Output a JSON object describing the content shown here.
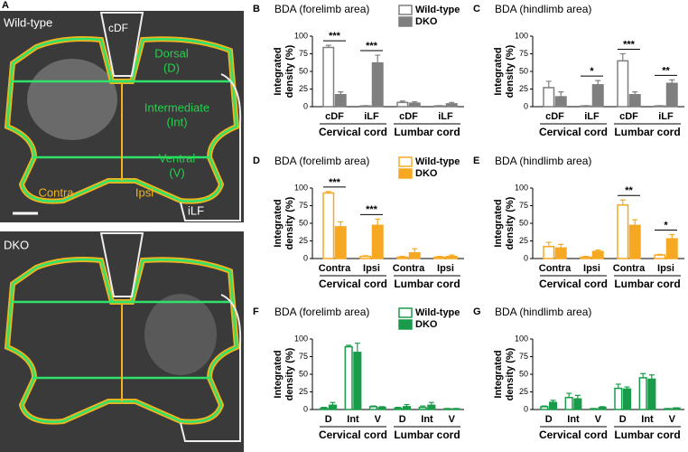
{
  "images": {
    "panel": "A",
    "top": {
      "label": "Wild-type",
      "regions": {
        "cdf": "cDF",
        "dorsal": "Dorsal",
        "dorsal_abbr": "(D)",
        "intermediate": "Intermediate",
        "intermediate_abbr": "(Int)",
        "ventral": "Ventral",
        "ventral_abbr": "(V)",
        "contra": "Contra",
        "ipsi": "Ipsi",
        "ilf": "iLF"
      }
    },
    "bottom": {
      "label": "DKO"
    }
  },
  "chart_data": [
    {
      "type": "bar",
      "panel": "B",
      "title": "BDA (forelimb area)",
      "ylabel": [
        "Integrated",
        "density (%)"
      ],
      "categories": [
        "cDF",
        "iLF",
        "cDF",
        "iLF"
      ],
      "group_labels": [
        "Cervical cord",
        "Lumbar cord"
      ],
      "ylim": [
        0,
        100
      ],
      "yticks": [
        0,
        25,
        50,
        75,
        100
      ],
      "legend": true,
      "significance": [
        "***",
        "***",
        null,
        null
      ],
      "series": [
        {
          "name": "Wild-type",
          "color": "#7f7f7f",
          "hollow": true,
          "values": [
            84,
            1,
            6,
            1
          ],
          "errors": [
            3,
            0.5,
            2,
            0.5
          ]
        },
        {
          "name": "DKO",
          "color": "#7f7f7f",
          "hollow": false,
          "values": [
            17,
            62,
            5,
            4
          ],
          "errors": [
            4,
            11,
            2,
            2
          ]
        }
      ]
    },
    {
      "type": "bar",
      "panel": "C",
      "title": "BDA (hindlimb area)",
      "ylabel": [
        "Integrated",
        "density (%)"
      ],
      "categories": [
        "cDF",
        "iLF",
        "cDF",
        "iLF"
      ],
      "group_labels": [
        "Cervical cord",
        "Lumbar cord"
      ],
      "ylim": [
        0,
        100
      ],
      "yticks": [
        0,
        25,
        50,
        75,
        100
      ],
      "legend": false,
      "significance": [
        null,
        "*",
        "***",
        "**"
      ],
      "series": [
        {
          "name": "Wild-type",
          "color": "#7f7f7f",
          "hollow": true,
          "values": [
            27,
            1,
            65,
            1
          ],
          "errors": [
            9,
            0.5,
            10,
            0.5
          ]
        },
        {
          "name": "DKO",
          "color": "#7f7f7f",
          "hollow": false,
          "values": [
            14,
            31,
            17,
            33
          ],
          "errors": [
            7,
            6,
            4,
            5
          ]
        }
      ]
    },
    {
      "type": "bar",
      "panel": "D",
      "title": "BDA (forelimb area)",
      "ylabel": [
        "Integrated",
        "density (%)"
      ],
      "categories": [
        "Contra",
        "Ipsi",
        "Contra",
        "Ipsi"
      ],
      "group_labels": [
        "Cervical cord",
        "Lumbar cord"
      ],
      "ylim": [
        0,
        100
      ],
      "yticks": [
        0,
        25,
        50,
        75,
        100
      ],
      "legend": true,
      "significance": [
        "***",
        "***",
        null,
        null
      ],
      "series": [
        {
          "name": "Wild-type",
          "color": "#f7a823",
          "hollow": true,
          "values": [
            93,
            3,
            2,
            2
          ],
          "errors": [
            2,
            1,
            1,
            1
          ]
        },
        {
          "name": "DKO",
          "color": "#f7a823",
          "hollow": false,
          "values": [
            45,
            47,
            8,
            3
          ],
          "errors": [
            7,
            9,
            6,
            2
          ]
        }
      ]
    },
    {
      "type": "bar",
      "panel": "E",
      "title": "BDA (hindlimb area)",
      "ylabel": [
        "Integrated",
        "density (%)"
      ],
      "categories": [
        "Contra",
        "Ipsi",
        "Contra",
        "Ipsi"
      ],
      "group_labels": [
        "Cervical cord",
        "Lumbar cord"
      ],
      "ylim": [
        0,
        100
      ],
      "yticks": [
        0,
        25,
        50,
        75,
        100
      ],
      "legend": false,
      "significance": [
        null,
        null,
        "**",
        "*"
      ],
      "series": [
        {
          "name": "Wild-type",
          "color": "#f7a823",
          "hollow": true,
          "values": [
            17,
            2,
            76,
            5
          ],
          "errors": [
            6,
            1,
            7,
            1
          ]
        },
        {
          "name": "DKO",
          "color": "#f7a823",
          "hollow": false,
          "values": [
            15,
            10,
            47,
            28
          ],
          "errors": [
            5,
            2,
            8,
            6
          ]
        }
      ]
    },
    {
      "type": "bar",
      "panel": "F",
      "title": "BDA (forelimb area)",
      "ylabel": [
        "Integrated",
        "density (%)"
      ],
      "categories": [
        "D",
        "Int",
        "V",
        "D",
        "Int",
        "V"
      ],
      "group_labels": [
        "Cervical cord",
        "Lumbar cord"
      ],
      "ylim": [
        0,
        100
      ],
      "yticks": [
        0,
        25,
        50,
        75,
        100
      ],
      "legend": true,
      "significance": [
        null,
        null,
        null,
        null,
        null,
        null
      ],
      "series": [
        {
          "name": "Wild-type",
          "color": "#1a9b4b",
          "hollow": true,
          "values": [
            2,
            89,
            4,
            2,
            3,
            1
          ],
          "errors": [
            1,
            2,
            1,
            1,
            2,
            0.5
          ]
        },
        {
          "name": "DKO",
          "color": "#1a9b4b",
          "hollow": false,
          "values": [
            6,
            81,
            3,
            4,
            6,
            1
          ],
          "errors": [
            4,
            13,
            1,
            3,
            4,
            0.5
          ]
        }
      ]
    },
    {
      "type": "bar",
      "panel": "G",
      "title": "BDA (hindlimb area)",
      "ylabel": [
        "Integrated",
        "density (%)"
      ],
      "categories": [
        "D",
        "Int",
        "V",
        "D",
        "Int",
        "V"
      ],
      "group_labels": [
        "Cervical cord",
        "Lumbar cord"
      ],
      "ylim": [
        0,
        100
      ],
      "yticks": [
        0,
        25,
        50,
        75,
        100
      ],
      "legend": false,
      "significance": [
        null,
        null,
        null,
        null,
        null,
        null
      ],
      "series": [
        {
          "name": "Wild-type",
          "color": "#1a9b4b",
          "hollow": true,
          "values": [
            4,
            17,
            1,
            30,
            45,
            1
          ],
          "errors": [
            1,
            6,
            0.5,
            6,
            6,
            0.5
          ]
        },
        {
          "name": "DKO",
          "color": "#1a9b4b",
          "hollow": false,
          "values": [
            10,
            15,
            3,
            29,
            43,
            2
          ],
          "errors": [
            3,
            5,
            1,
            3,
            6,
            0.5
          ]
        }
      ]
    }
  ]
}
